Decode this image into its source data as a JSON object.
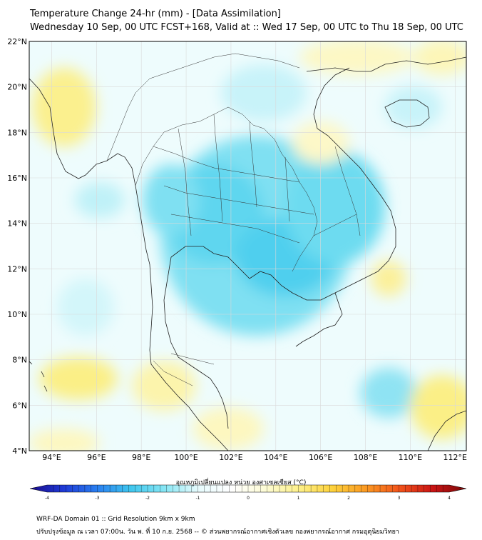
{
  "header": {
    "title": "Temperature Change 24-hr (mm) - [Data Assimilation]",
    "subtitle": "Wednesday 10 Sep, 00 UTC FCST+168, Valid at :: Wed 17 Sep, 00 UTC to Thu 18 Sep, 00 UTC"
  },
  "map": {
    "lat_labels": [
      "22°N",
      "20°N",
      "18°N",
      "16°N",
      "14°N",
      "12°N",
      "10°N",
      "8°N",
      "6°N",
      "4°N"
    ],
    "lon_labels": [
      "94°E",
      "96°E",
      "98°E",
      "100°E",
      "102°E",
      "104°E",
      "106°E",
      "108°E",
      "110°E",
      "112°E"
    ],
    "lat_range": [
      4,
      22
    ],
    "lon_range": [
      93,
      112.5
    ]
  },
  "colorbar": {
    "label": "อุณหภูมิเปลี่ยนแปลง หน่วย องศาเซลเซียส (°C)",
    "ticks": [
      "-4",
      "-3",
      "-2",
      "-1",
      "0",
      "1",
      "2",
      "3",
      "4"
    ],
    "range": [
      -4,
      4
    ],
    "colors": [
      "#1a0b8a",
      "#1f3ad6",
      "#2a7ff0",
      "#3fc6ee",
      "#86e6f4",
      "#e6fbfd",
      "#ffffff",
      "#fdfcd6",
      "#fdf08a",
      "#fdd23c",
      "#fb9a23",
      "#f2541b",
      "#c91414",
      "#7a0a0a"
    ]
  },
  "footer": {
    "line1": "WRF-DA Domain 01 :: Grid Resolution 9km x 9km",
    "line2": "ปรับปรุงข้อมูล ณ เวลา 07:00น. วัน พ. ที่ 10 ก.ย. 2568 -- © ส่วนพยากรณ์อากาศเชิงตัวเลข กองพยากรณ์อากาศ กรมอุตุนิยมวิทยา"
  }
}
